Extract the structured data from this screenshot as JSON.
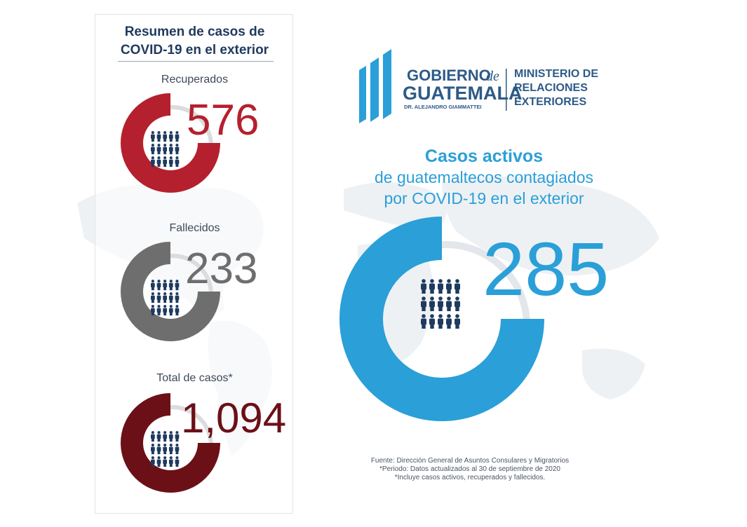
{
  "panel": {
    "title_line1": "Resumen de casos de",
    "title_line2": "COVID-19 en el exterior",
    "stats": [
      {
        "label": "Recuperados",
        "value": "576",
        "color": "#b5202e"
      },
      {
        "label": "Fallecidos",
        "value": "233",
        "color": "#6e6e6e"
      },
      {
        "label": "Total de casos*",
        "value": "1,094",
        "color": "#6b1017"
      }
    ]
  },
  "logo": {
    "gobierno": "GOBIERNO",
    "de": "de",
    "guatemala": "GUATEMALA",
    "president": "DR. ALEJANDRO GIAMMATTEI",
    "ministry_line1": "MINISTERIO DE",
    "ministry_line2": "RELACIONES",
    "ministry_line3": "EXTERIORES",
    "color": "#2e5a87"
  },
  "headline": {
    "line1": "Casos activos",
    "line2": "de guatemaltecos contagiados",
    "line3": "por COVID-19 en el exterior"
  },
  "active": {
    "value": "285",
    "color": "#2a9fd8"
  },
  "source": {
    "line1": "Fuente: Dirección General de Asuntos Consulares y Migratorios",
    "line2": "*Periodo: Datos actualizados al 30 de septiembre de 2020",
    "line3": "*Incluye casos activos, recuperados y fallecidos."
  },
  "icons": {
    "people": "people-group-icon",
    "people_color": "#1f3a5e"
  }
}
